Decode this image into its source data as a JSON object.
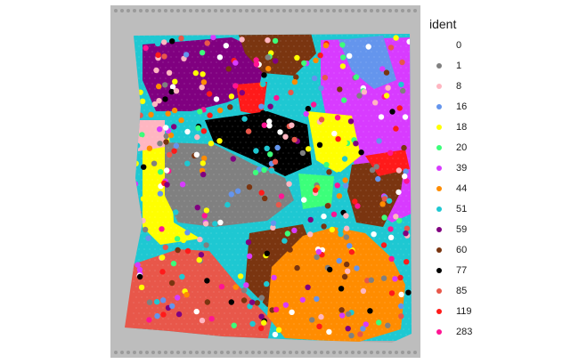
{
  "chart_data": {
    "type": "scatter",
    "title": "",
    "xlabel": "",
    "ylabel": "",
    "grid": false,
    "legend": {
      "title": "ident",
      "position": "right",
      "entries": [
        {
          "label": "0",
          "color": "#ffffff"
        },
        {
          "label": "1",
          "color": "#808080"
        },
        {
          "label": "8",
          "color": "#ffb6c1"
        },
        {
          "label": "16",
          "color": "#6495ed"
        },
        {
          "label": "18",
          "color": "#ffff00"
        },
        {
          "label": "20",
          "color": "#3cff7a"
        },
        {
          "label": "39",
          "color": "#d83bff"
        },
        {
          "label": "44",
          "color": "#ff8c00"
        },
        {
          "label": "51",
          "color": "#1ec8d2"
        },
        {
          "label": "59",
          "color": "#800080"
        },
        {
          "label": "60",
          "color": "#7a3510"
        },
        {
          "label": "77",
          "color": "#000000"
        },
        {
          "label": "85",
          "color": "#e8574a"
        },
        {
          "label": "119",
          "color": "#ff1a1a"
        },
        {
          "label": "283",
          "color": "#ff1493"
        }
      ]
    },
    "background": "tissue histology image (grey)"
  }
}
